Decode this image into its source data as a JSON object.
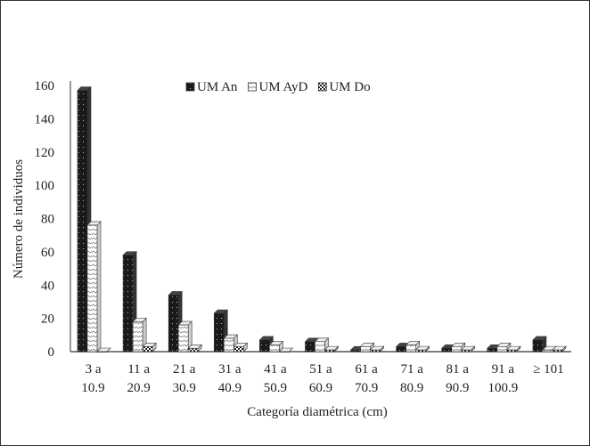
{
  "chart_data": {
    "type": "bar",
    "title": "",
    "xlabel": "Categoría diamétrica (cm)",
    "ylabel": "Número de individuos",
    "ylim": [
      0,
      160
    ],
    "yticks": [
      0,
      20,
      40,
      60,
      80,
      100,
      120,
      140,
      160
    ],
    "grid": false,
    "legend_position": "top",
    "categories": [
      [
        "3 a",
        "10.9"
      ],
      [
        "11 a",
        "20.9"
      ],
      [
        "21 a",
        "30.9"
      ],
      [
        "31 a",
        "40.9"
      ],
      [
        "41 a",
        "50.9"
      ],
      [
        "51 a",
        "60.9"
      ],
      [
        "61 a",
        "70.9"
      ],
      [
        "71 a",
        "80.9"
      ],
      [
        "81 a",
        "90.9"
      ],
      [
        "91 a",
        "100.9"
      ],
      [
        "≥ 101",
        ""
      ]
    ],
    "series": [
      {
        "name": "UM An",
        "color": "#1a1a1a",
        "values": [
          157,
          58,
          34,
          23,
          7,
          6,
          1,
          3,
          2,
          2,
          7
        ]
      },
      {
        "name": "UM AyD",
        "color": "#ffffff",
        "values": [
          76,
          18,
          16,
          8,
          4,
          6,
          3,
          4,
          3,
          3,
          1
        ]
      },
      {
        "name": "UM Do",
        "color": "#555555",
        "values": [
          0,
          3,
          2,
          3,
          0,
          1,
          1,
          1,
          1,
          1,
          1
        ]
      }
    ]
  }
}
